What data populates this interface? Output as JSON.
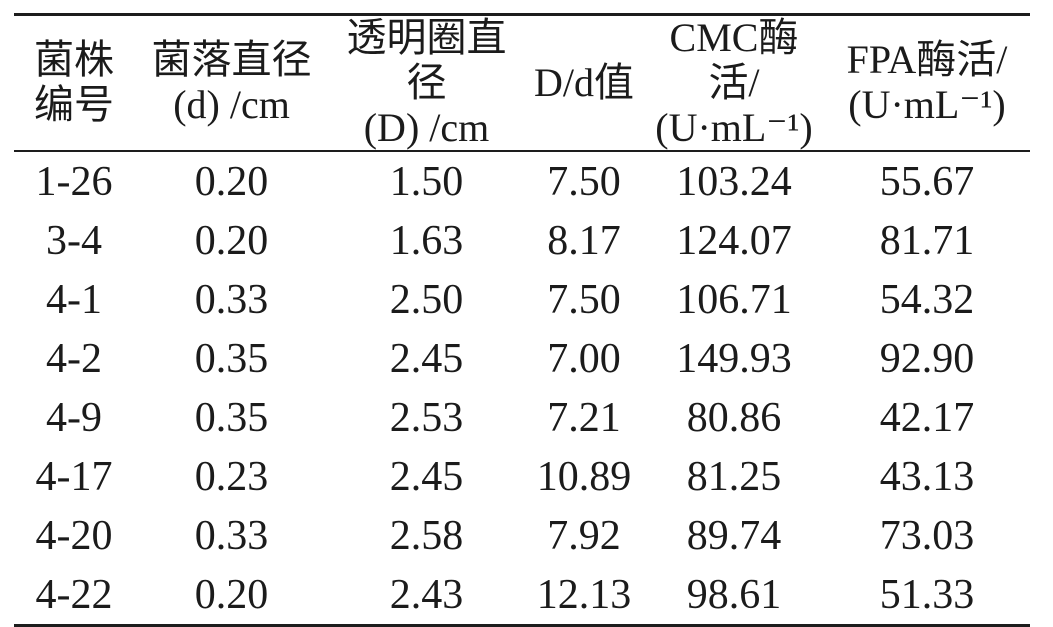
{
  "colors": {
    "background": "#ffffff",
    "text": "#1b1b1b",
    "rule": "#1d1d1d"
  },
  "table": {
    "columns": [
      {
        "line1": "菌株",
        "line2": "编号"
      },
      {
        "line1": "菌落直径",
        "line2": "(d) /cm"
      },
      {
        "line1": "透明圈直径",
        "line2": "(D) /cm"
      },
      {
        "line1": "D/d值",
        "line2": ""
      },
      {
        "line1": "CMC酶活/",
        "line2": "(U·mL⁻¹)"
      },
      {
        "line1": "FPA酶活/",
        "line2": "(U·mL⁻¹)"
      }
    ],
    "rows": [
      [
        "1-26",
        "0.20",
        "1.50",
        "7.50",
        "103.24",
        "55.67"
      ],
      [
        "3-4",
        "0.20",
        "1.63",
        "8.17",
        "124.07",
        "81.71"
      ],
      [
        "4-1",
        "0.33",
        "2.50",
        "7.50",
        "106.71",
        "54.32"
      ],
      [
        "4-2",
        "0.35",
        "2.45",
        "7.00",
        "149.93",
        "92.90"
      ],
      [
        "4-9",
        "0.35",
        "2.53",
        "7.21",
        "80.86",
        "42.17"
      ],
      [
        "4-17",
        "0.23",
        "2.45",
        "10.89",
        "81.25",
        "43.13"
      ],
      [
        "4-20",
        "0.33",
        "2.58",
        "7.92",
        "89.74",
        "73.03"
      ],
      [
        "4-22",
        "0.20",
        "2.43",
        "12.13",
        "98.61",
        "51.33"
      ]
    ]
  }
}
